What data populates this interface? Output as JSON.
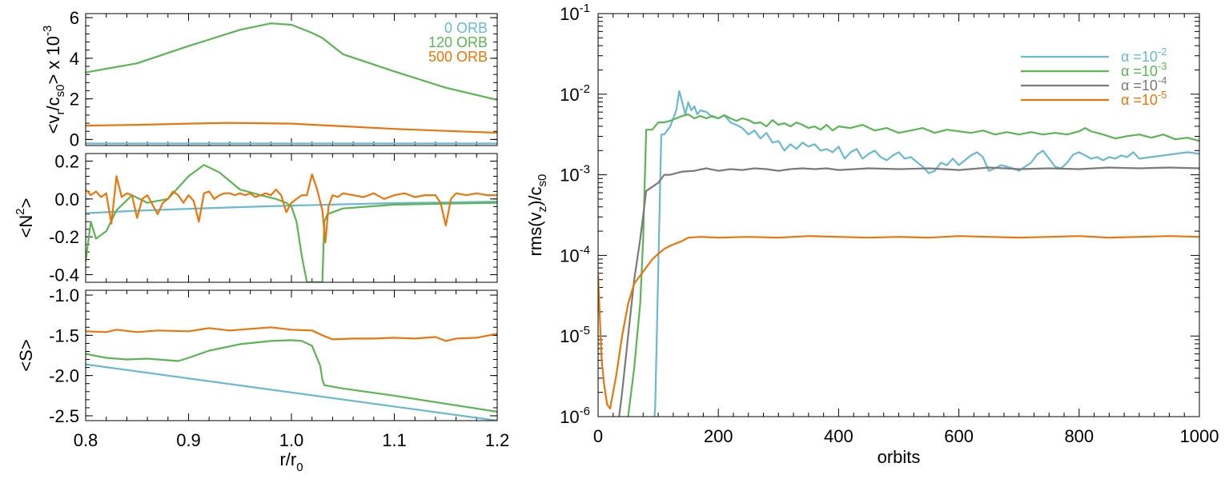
{
  "colors": {
    "blue": "#6bb8cf",
    "green": "#5db356",
    "orange": "#e8760e",
    "gray": "#7a7a7a"
  },
  "chart_data": [
    {
      "id": "vr",
      "type": "line",
      "ylabel_parts": [
        "<v",
        "r",
        "/c",
        "s0",
        "> x 10",
        "-3"
      ],
      "xlim": [
        0.8,
        1.2
      ],
      "ylim": [
        -0.3,
        6.2
      ],
      "yticks": [
        0,
        2,
        4,
        6
      ],
      "ytick_labels": [
        "0",
        "2",
        "4",
        "6"
      ],
      "legend": [
        {
          "label": "0 ORB",
          "color": "blue"
        },
        {
          "label": "120 ORB",
          "color": "green"
        },
        {
          "label": "500 ORB",
          "color": "orange"
        }
      ],
      "series": [
        {
          "name": "0 ORB",
          "color": "blue",
          "x": [
            0.8,
            1.2
          ],
          "y": [
            -0.2,
            -0.2
          ]
        },
        {
          "name": "120 ORB",
          "color": "green",
          "x": [
            0.8,
            0.85,
            0.9,
            0.95,
            0.98,
            1.0,
            1.02,
            1.03,
            1.05,
            1.1,
            1.15,
            1.2
          ],
          "y": [
            3.3,
            3.75,
            4.6,
            5.4,
            5.72,
            5.65,
            5.25,
            5.0,
            4.2,
            3.35,
            2.55,
            1.95
          ]
        },
        {
          "name": "500 ORB",
          "color": "orange",
          "x": [
            0.8,
            0.85,
            0.9,
            0.94,
            1.0,
            1.05,
            1.1,
            1.15,
            1.2
          ],
          "y": [
            0.68,
            0.72,
            0.78,
            0.82,
            0.78,
            0.65,
            0.52,
            0.42,
            0.33
          ]
        }
      ]
    },
    {
      "id": "n2",
      "type": "line",
      "ylabel_parts": [
        "<N",
        "2",
        ">"
      ],
      "xlim": [
        0.8,
        1.2
      ],
      "ylim": [
        -0.44,
        0.24
      ],
      "yticks": [
        0.2,
        0.0,
        -0.2,
        -0.4
      ],
      "ytick_labels": [
        "0.2",
        "0.0",
        "-0.2",
        "-0.4"
      ],
      "series": [
        {
          "name": "0 ORB",
          "color": "blue",
          "x": [
            0.8,
            0.85,
            0.9,
            0.95,
            1.0,
            1.05,
            1.1,
            1.15,
            1.2
          ],
          "y": [
            -0.075,
            -0.062,
            -0.052,
            -0.043,
            -0.035,
            -0.028,
            -0.022,
            -0.018,
            -0.014
          ]
        },
        {
          "name": "120 ORB",
          "color": "green",
          "x": [
            0.8,
            0.805,
            0.81,
            0.82,
            0.83,
            0.845,
            0.86,
            0.88,
            0.9,
            0.915,
            0.93,
            0.95,
            0.97,
            0.985,
            0.995,
            1.0,
            1.005,
            1.01,
            1.015,
            1.02,
            1.025,
            1.03,
            1.032,
            1.035,
            1.05,
            1.1,
            1.15,
            1.2
          ],
          "y": [
            -0.33,
            -0.12,
            -0.21,
            -0.17,
            -0.06,
            0.02,
            -0.02,
            0.0,
            0.12,
            0.18,
            0.14,
            0.05,
            0.02,
            0.0,
            -0.02,
            -0.04,
            -0.12,
            -0.3,
            -0.44,
            -0.44,
            -0.44,
            -0.44,
            -0.12,
            -0.08,
            -0.05,
            -0.03,
            -0.025,
            -0.02
          ]
        },
        {
          "name": "500 ORB",
          "color": "orange",
          "x": [
            0.8,
            0.805,
            0.81,
            0.815,
            0.82,
            0.825,
            0.83,
            0.835,
            0.84,
            0.845,
            0.85,
            0.855,
            0.86,
            0.865,
            0.87,
            0.875,
            0.88,
            0.885,
            0.89,
            0.895,
            0.9,
            0.905,
            0.91,
            0.915,
            0.92,
            0.925,
            0.93,
            0.935,
            0.94,
            0.945,
            0.95,
            0.955,
            0.96,
            0.965,
            0.97,
            0.975,
            0.98,
            0.985,
            0.99,
            0.995,
            1.0,
            1.005,
            1.01,
            1.015,
            1.02,
            1.025,
            1.03,
            1.033,
            1.036,
            1.04,
            1.045,
            1.05,
            1.06,
            1.07,
            1.08,
            1.09,
            1.1,
            1.11,
            1.12,
            1.13,
            1.14,
            1.145,
            1.15,
            1.155,
            1.16,
            1.17,
            1.18,
            1.19,
            1.2
          ],
          "y": [
            0.05,
            0.02,
            0.04,
            0.01,
            0.03,
            -0.13,
            0.12,
            0.01,
            0.03,
            0.02,
            -0.1,
            0.0,
            0.02,
            -0.03,
            -0.08,
            -0.02,
            0.0,
            0.04,
            0.02,
            -0.02,
            0.02,
            -0.01,
            -0.12,
            0.03,
            0.04,
            0.0,
            0.02,
            0.03,
            0.03,
            0.02,
            0.03,
            0.02,
            0.03,
            0.01,
            0.02,
            0.03,
            0.02,
            0.05,
            0.02,
            -0.07,
            -0.02,
            0.0,
            0.02,
            0.02,
            0.13,
            0.05,
            -0.06,
            -0.23,
            -0.04,
            0.02,
            0.01,
            0.03,
            0.02,
            0.01,
            0.03,
            0.0,
            0.02,
            0.03,
            0.01,
            0.02,
            0.02,
            -0.02,
            -0.14,
            0.0,
            0.03,
            0.02,
            0.03,
            0.02,
            0.02
          ]
        }
      ]
    },
    {
      "id": "s",
      "type": "line",
      "ylabel_parts": [
        "<S>"
      ],
      "xlabel_parts": [
        "r/r",
        "0"
      ],
      "xlim": [
        0.8,
        1.2
      ],
      "ylim": [
        -2.56,
        -0.94
      ],
      "yticks": [
        -1.0,
        -1.5,
        -2.0,
        -2.5
      ],
      "ytick_labels": [
        "-1.0",
        "-1.5",
        "-2.0",
        "-2.5"
      ],
      "xticks": [
        0.8,
        0.9,
        1.0,
        1.1,
        1.2
      ],
      "xtick_labels": [
        "0.8",
        "0.9",
        "1.0",
        "1.1",
        "1.2"
      ],
      "series": [
        {
          "name": "0 ORB",
          "color": "blue",
          "x": [
            0.8,
            1.2
          ],
          "y": [
            -1.86,
            -2.56
          ]
        },
        {
          "name": "120 ORB",
          "color": "green",
          "x": [
            0.8,
            0.82,
            0.84,
            0.86,
            0.88,
            0.89,
            0.9,
            0.92,
            0.95,
            0.98,
            1.0,
            1.01,
            1.02,
            1.028,
            1.03,
            1.032,
            1.05,
            1.1,
            1.15,
            1.2
          ],
          "y": [
            -1.73,
            -1.78,
            -1.8,
            -1.79,
            -1.81,
            -1.82,
            -1.78,
            -1.69,
            -1.61,
            -1.57,
            -1.56,
            -1.57,
            -1.63,
            -1.88,
            -2.05,
            -2.12,
            -2.16,
            -2.25,
            -2.35,
            -2.45
          ]
        },
        {
          "name": "500 ORB",
          "color": "orange",
          "x": [
            0.8,
            0.82,
            0.83,
            0.85,
            0.87,
            0.9,
            0.92,
            0.94,
            0.96,
            0.98,
            1.0,
            1.02,
            1.03,
            1.04,
            1.06,
            1.08,
            1.1,
            1.12,
            1.14,
            1.15,
            1.16,
            1.18,
            1.2
          ],
          "y": [
            -1.45,
            -1.46,
            -1.43,
            -1.46,
            -1.44,
            -1.45,
            -1.41,
            -1.44,
            -1.42,
            -1.4,
            -1.43,
            -1.44,
            -1.5,
            -1.55,
            -1.54,
            -1.54,
            -1.53,
            -1.54,
            -1.52,
            -1.57,
            -1.54,
            -1.53,
            -1.48
          ]
        }
      ]
    },
    {
      "id": "rms",
      "type": "line",
      "yscale": "log",
      "ylabel_parts": [
        "rms(v",
        "z",
        ")/c",
        "s0"
      ],
      "xlabel": "orbits",
      "xlim": [
        0,
        1000
      ],
      "ylim_exp": [
        -6,
        -1
      ],
      "yticks_exp": [
        -1,
        -2,
        -3,
        -4,
        -5,
        -6
      ],
      "ytick_base": "10",
      "ytick_exponents": [
        "-1",
        "-2",
        "-3",
        "-4",
        "-5",
        "-6"
      ],
      "xticks": [
        0,
        200,
        400,
        600,
        800,
        1000
      ],
      "xtick_labels": [
        "0",
        "200",
        "400",
        "600",
        "800",
        "1000"
      ],
      "legend": [
        {
          "prefix": "α =10",
          "exp": "-2",
          "color": "blue"
        },
        {
          "prefix": "α =10",
          "exp": "-3",
          "color": "green"
        },
        {
          "prefix": "α =10",
          "exp": "-4",
          "color": "gray"
        },
        {
          "prefix": "α =10",
          "exp": "-5",
          "color": "orange"
        }
      ],
      "series": [
        {
          "name": "α =10^-2",
          "color": "blue",
          "x": [
            90,
            95,
            100,
            105,
            110,
            115,
            120,
            125,
            130,
            135,
            140,
            145,
            150,
            155,
            160,
            165,
            170,
            180,
            190,
            200,
            210,
            220,
            230,
            240,
            250,
            260,
            270,
            280,
            290,
            300,
            310,
            320,
            330,
            340,
            350,
            360,
            370,
            380,
            390,
            400,
            410,
            420,
            430,
            440,
            450,
            460,
            470,
            480,
            490,
            500,
            510,
            520,
            530,
            540,
            550,
            560,
            570,
            580,
            590,
            600,
            610,
            620,
            630,
            640,
            650,
            660,
            670,
            680,
            690,
            700,
            710,
            720,
            730,
            740,
            750,
            760,
            770,
            780,
            790,
            800,
            810,
            820,
            830,
            840,
            850,
            860,
            870,
            880,
            890,
            900,
            920,
            940,
            960,
            980,
            1000
          ],
          "y": [
            -6.3,
            -5.9,
            -4.2,
            -2.5,
            -2.5,
            -2.45,
            -2.4,
            -2.3,
            -2.2,
            -1.96,
            -2.1,
            -2.25,
            -2.1,
            -2.2,
            -2.15,
            -2.25,
            -2.2,
            -2.22,
            -2.28,
            -2.3,
            -2.26,
            -2.35,
            -2.38,
            -2.42,
            -2.5,
            -2.45,
            -2.55,
            -2.48,
            -2.6,
            -2.58,
            -2.7,
            -2.62,
            -2.68,
            -2.6,
            -2.65,
            -2.62,
            -2.7,
            -2.68,
            -2.72,
            -2.65,
            -2.8,
            -2.72,
            -2.68,
            -2.8,
            -2.74,
            -2.7,
            -2.78,
            -2.82,
            -2.76,
            -2.72,
            -2.8,
            -2.78,
            -2.84,
            -2.9,
            -2.98,
            -2.95,
            -2.85,
            -2.88,
            -2.8,
            -2.88,
            -2.82,
            -2.76,
            -2.72,
            -2.78,
            -2.95,
            -2.92,
            -2.88,
            -2.9,
            -2.92,
            -2.95,
            -2.9,
            -2.85,
            -2.75,
            -2.7,
            -2.8,
            -2.9,
            -2.92,
            -2.85,
            -2.75,
            -2.72,
            -2.76,
            -2.8,
            -2.78,
            -2.82,
            -2.78,
            -2.8,
            -2.76,
            -2.78,
            -2.72,
            -2.8,
            -2.78,
            -2.76,
            -2.74,
            -2.72,
            -2.74
          ]
        },
        {
          "name": "α =10^-3",
          "color": "green",
          "x": [
            45,
            50,
            55,
            60,
            65,
            70,
            75,
            80,
            85,
            90,
            100,
            110,
            120,
            130,
            140,
            150,
            160,
            170,
            180,
            190,
            200,
            210,
            220,
            230,
            240,
            250,
            260,
            270,
            280,
            290,
            300,
            310,
            320,
            330,
            340,
            350,
            360,
            370,
            380,
            390,
            400,
            420,
            440,
            460,
            480,
            500,
            520,
            540,
            560,
            580,
            600,
            620,
            640,
            660,
            680,
            700,
            720,
            740,
            760,
            780,
            800,
            810,
            820,
            840,
            860,
            880,
            900,
            920,
            940,
            960,
            980,
            1000
          ],
          "y": [
            -6.3,
            -6.0,
            -5.7,
            -5.4,
            -5.0,
            -4.6,
            -3.8,
            -2.44,
            -2.44,
            -2.44,
            -2.35,
            -2.35,
            -2.33,
            -2.3,
            -2.27,
            -2.25,
            -2.3,
            -2.27,
            -2.3,
            -2.27,
            -2.3,
            -2.26,
            -2.3,
            -2.33,
            -2.3,
            -2.32,
            -2.36,
            -2.35,
            -2.4,
            -2.32,
            -2.38,
            -2.36,
            -2.4,
            -2.35,
            -2.38,
            -2.42,
            -2.4,
            -2.44,
            -2.38,
            -2.45,
            -2.4,
            -2.42,
            -2.38,
            -2.45,
            -2.42,
            -2.48,
            -2.45,
            -2.42,
            -2.48,
            -2.44,
            -2.46,
            -2.48,
            -2.45,
            -2.5,
            -2.47,
            -2.5,
            -2.47,
            -2.5,
            -2.48,
            -2.5,
            -2.46,
            -2.42,
            -2.46,
            -2.5,
            -2.55,
            -2.52,
            -2.5,
            -2.54,
            -2.5,
            -2.56,
            -2.54,
            -2.58
          ]
        },
        {
          "name": "α =10^-4",
          "color": "gray",
          "x": [
            0,
            5,
            10,
            20,
            30,
            40,
            50,
            60,
            70,
            80,
            90,
            100,
            110,
            120,
            140,
            160,
            180,
            200,
            220,
            240,
            260,
            280,
            300,
            320,
            340,
            360,
            380,
            400,
            450,
            500,
            550,
            600,
            650,
            700,
            750,
            800,
            850,
            900,
            950,
            1000
          ],
          "y": [
            -6.6,
            -6.3,
            -6.2,
            -6.25,
            -6.3,
            -5.7,
            -5.0,
            -4.3,
            -3.8,
            -3.2,
            -3.15,
            -3.1,
            -3.0,
            -3.0,
            -2.96,
            -2.95,
            -2.92,
            -2.95,
            -2.93,
            -2.94,
            -2.92,
            -2.93,
            -2.95,
            -2.93,
            -2.92,
            -2.93,
            -2.92,
            -2.94,
            -2.92,
            -2.93,
            -2.92,
            -2.94,
            -2.91,
            -2.93,
            -2.92,
            -2.93,
            -2.91,
            -2.92,
            -2.91,
            -2.92
          ]
        },
        {
          "name": "α =10^-5",
          "color": "orange",
          "x": [
            0,
            3,
            6,
            10,
            15,
            20,
            30,
            40,
            50,
            60,
            70,
            80,
            90,
            100,
            110,
            120,
            130,
            140,
            150,
            170,
            200,
            250,
            300,
            350,
            400,
            450,
            500,
            550,
            600,
            650,
            700,
            750,
            800,
            850,
            900,
            950,
            1000
          ],
          "y": [
            -4.25,
            -4.8,
            -5.3,
            -5.6,
            -5.85,
            -5.9,
            -5.5,
            -5.0,
            -4.6,
            -4.35,
            -4.25,
            -4.15,
            -4.05,
            -3.98,
            -3.92,
            -3.88,
            -3.85,
            -3.82,
            -3.78,
            -3.77,
            -3.78,
            -3.77,
            -3.78,
            -3.76,
            -3.77,
            -3.78,
            -3.77,
            -3.78,
            -3.76,
            -3.77,
            -3.78,
            -3.77,
            -3.76,
            -3.78,
            -3.77,
            -3.76,
            -3.77
          ]
        }
      ]
    }
  ]
}
